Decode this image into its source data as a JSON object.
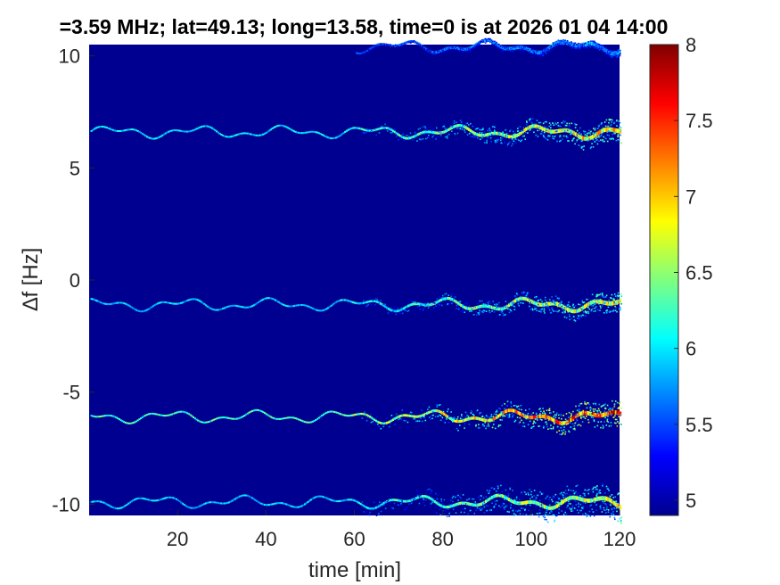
{
  "chart_data": {
    "type": "heatmap",
    "title": "=3.59 MHz;  lat=49.13; long=13.58, time=0 is at 2026 01 04 14:00",
    "xlabel": "time [min]",
    "ylabel": "∆f [Hz]",
    "xlim": [
      0,
      120
    ],
    "ylim": [
      -10.5,
      10.5
    ],
    "xticks": [
      20,
      40,
      60,
      80,
      100,
      120
    ],
    "xtick_labels": [
      "20",
      "40",
      "60",
      "80",
      "100",
      "120"
    ],
    "yticks": [
      -10,
      -5,
      0,
      5,
      10
    ],
    "ytick_labels": [
      "-10",
      "-5",
      "0",
      "5",
      "10"
    ],
    "colorbar": {
      "range": [
        4.9,
        8
      ],
      "ticks": [
        5,
        5.5,
        6,
        6.5,
        7,
        7.5,
        8
      ],
      "tick_labels": [
        "5",
        "5.5",
        "6",
        "6.5",
        "7",
        "7.5",
        "8"
      ],
      "colormap": "jet"
    },
    "background_value": 4.95,
    "traces": [
      {
        "name": "",
        "base": 6.6,
        "peak": 7.2,
        "spread_end": 0.35,
        "start": 0
      },
      {
        "name": "",
        "base": -1.1,
        "peak": 7.0,
        "spread_end": 0.3,
        "start": 0
      },
      {
        "name": "",
        "base": -6.1,
        "peak": 7.9,
        "spread_end": 0.4,
        "start": 0
      },
      {
        "name": "",
        "base": -9.9,
        "peak": 7.0,
        "spread_end": 0.5,
        "start": 0
      },
      {
        "name": "",
        "base": 10.4,
        "peak": 5.8,
        "spread_end": 0.1,
        "start": 60
      }
    ]
  }
}
